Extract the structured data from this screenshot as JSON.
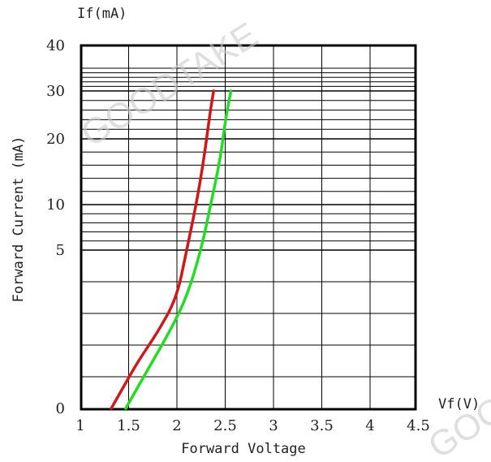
{
  "chart_data": {
    "type": "line",
    "y_title": "If(mA)",
    "x_title": "Vf(V)",
    "xlabel": "Forward Voltage",
    "ylabel": "Forward Current (mA)",
    "x_ticks": [
      1,
      1.5,
      2,
      2.5,
      3,
      3.5,
      4,
      4.5
    ],
    "y_tick_labels": [
      "0",
      "5",
      "10",
      "20",
      "30",
      "40"
    ],
    "y_tick_values": [
      0,
      5,
      10,
      20,
      30,
      40
    ],
    "xlim": [
      1,
      4.5
    ],
    "grid": true,
    "series": [
      {
        "color": "#d01818",
        "x": [
          1.32,
          1.45,
          1.6,
          1.8,
          2.0,
          2.1,
          2.2,
          2.28,
          2.34,
          2.38
        ],
        "y": [
          0,
          0.7,
          1.5,
          2.4,
          3.5,
          5,
          10,
          17,
          25,
          30
        ]
      },
      {
        "color": "#22dd22",
        "x": [
          1.47,
          1.6,
          1.75,
          1.92,
          2.1,
          2.25,
          2.35,
          2.45,
          2.51,
          2.56
        ],
        "y": [
          0,
          0.7,
          1.5,
          2.4,
          3.5,
          5,
          10,
          17,
          25,
          30
        ]
      }
    ],
    "watermarks": [
      "GOODTAKE",
      "GOOD"
    ]
  }
}
